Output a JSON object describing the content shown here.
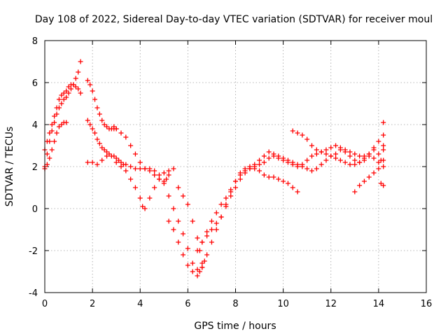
{
  "chart_data": {
    "type": "scatter",
    "title": "Day 108 of 2022, Sidereal Day-to-day VTEC variation (SDTVAR) for receiver moul",
    "xlabel": "GPS time / hours",
    "ylabel": "SDTVAR / TECUs",
    "xlim": [
      0,
      16
    ],
    "ylim": [
      -4,
      8
    ],
    "xticks": [
      "0",
      "2",
      "4",
      "6",
      "8",
      "10",
      "12",
      "14",
      "16"
    ],
    "yticks": [
      "-4",
      "-2",
      "0",
      "2",
      "4",
      "6",
      "8"
    ],
    "grid": true,
    "marker": "+",
    "marker_color": "#ff0000",
    "series": [
      {
        "name": "",
        "x": [
          0.0,
          0.1,
          0.2,
          0.3,
          0.4,
          0.5,
          0.6,
          0.7,
          0.8,
          0.9,
          1.0,
          1.1,
          1.2,
          1.3,
          1.4,
          1.5,
          0.0,
          0.1,
          0.2,
          0.3,
          0.4,
          0.5,
          0.6,
          0.7,
          0.8,
          0.9,
          1.0,
          1.1,
          1.2,
          1.3,
          1.4,
          1.5,
          0.0,
          0.1,
          0.2,
          0.3,
          0.4,
          0.5,
          0.6,
          0.7,
          0.8,
          0.9,
          1.8,
          1.9,
          2.0,
          2.1,
          2.2,
          2.3,
          2.4,
          2.5,
          2.6,
          2.7,
          2.8,
          2.9,
          3.0,
          1.8,
          1.9,
          2.0,
          2.1,
          2.2,
          2.3,
          2.4,
          2.5,
          2.6,
          2.7,
          2.8,
          2.9,
          3.0,
          3.1,
          3.2,
          3.3,
          1.8,
          2.0,
          2.2,
          2.4,
          2.6,
          2.9,
          3.0,
          3.2,
          3.4,
          3.6,
          3.8,
          4.0,
          4.2,
          4.4,
          3.0,
          3.2,
          3.4,
          3.6,
          3.8,
          4.0,
          4.1,
          4.2,
          4.4,
          4.6,
          4.8,
          5.0,
          5.2,
          5.4,
          3.4,
          3.6,
          3.8,
          4.0,
          4.2,
          4.4,
          4.6,
          4.8,
          5.0,
          5.1,
          5.2,
          4.6,
          4.8,
          5.0,
          5.2,
          5.4,
          5.6,
          5.8,
          6.0,
          6.2,
          6.4,
          6.6,
          5.2,
          5.4,
          5.6,
          5.8,
          6.0,
          6.2,
          6.4,
          6.5,
          6.6,
          6.7,
          5.6,
          5.8,
          6.0,
          6.2,
          6.4,
          6.5,
          6.6,
          6.8,
          7.0,
          7.2,
          7.4,
          7.6,
          7.8,
          8.0,
          8.2,
          8.4,
          8.6,
          8.8,
          9.0,
          9.2,
          9.4,
          9.6,
          9.8,
          10.0,
          10.2,
          10.4,
          10.6,
          6.4,
          6.6,
          6.8,
          7.0,
          7.2,
          7.4,
          7.6,
          7.8,
          8.0,
          8.2,
          8.4,
          8.6,
          8.8,
          9.0,
          9.2,
          9.4,
          9.6,
          9.8,
          10.0,
          10.2,
          10.4,
          10.6,
          10.8,
          11.0,
          11.2,
          11.4,
          11.6,
          11.8,
          12.0,
          12.2,
          12.4,
          12.6,
          12.8,
          13.0,
          13.2,
          13.4,
          13.6,
          13.8,
          14.0,
          14.2,
          6.6,
          6.8,
          7.0,
          7.2,
          7.4,
          7.6,
          7.8,
          8.0,
          8.2,
          8.4,
          8.6,
          8.8,
          9.0,
          9.2,
          9.4,
          9.6,
          9.8,
          10.0,
          10.2,
          10.4,
          10.6,
          10.8,
          11.0,
          11.2,
          11.4,
          11.6,
          11.8,
          12.0,
          12.2,
          12.4,
          12.6,
          12.8,
          13.0,
          13.2,
          13.4,
          13.6,
          13.8,
          14.0,
          14.2,
          10.4,
          10.6,
          10.8,
          11.0,
          11.2,
          11.4,
          11.6,
          11.8,
          12.0,
          12.2,
          12.4,
          12.6,
          12.8,
          13.0,
          13.2,
          13.4,
          13.6,
          13.8,
          14.0,
          14.2,
          13.0,
          13.2,
          13.4,
          13.6,
          13.8,
          14.0,
          14.1,
          14.2,
          14.2,
          14.2,
          14.1,
          14.2
        ],
        "y": [
          2.0,
          2.6,
          3.2,
          3.7,
          4.1,
          4.5,
          4.8,
          5.0,
          5.2,
          5.3,
          5.5,
          5.7,
          5.9,
          6.2,
          6.5,
          7.0,
          2.8,
          3.2,
          3.6,
          4.0,
          4.4,
          4.8,
          5.2,
          5.4,
          5.5,
          5.6,
          5.8,
          5.9,
          5.9,
          5.8,
          5.7,
          5.5,
          1.9,
          2.1,
          2.4,
          2.8,
          3.2,
          3.6,
          3.9,
          4.0,
          4.1,
          4.1,
          6.1,
          5.9,
          5.6,
          5.2,
          4.8,
          4.5,
          4.2,
          4.0,
          3.9,
          3.8,
          3.8,
          3.8,
          3.8,
          4.2,
          4.0,
          3.8,
          3.6,
          3.3,
          3.1,
          2.9,
          2.8,
          2.7,
          2.6,
          2.5,
          2.5,
          2.4,
          2.3,
          2.2,
          2.1,
          2.2,
          2.2,
          2.1,
          2.3,
          2.5,
          3.9,
          3.8,
          3.6,
          3.4,
          3.0,
          2.6,
          2.2,
          1.9,
          1.9,
          2.2,
          2.0,
          1.8,
          1.4,
          1.0,
          0.5,
          0.1,
          0.0,
          0.5,
          1.0,
          1.4,
          1.7,
          1.8,
          1.9,
          2.1,
          2.0,
          1.9,
          1.9,
          1.9,
          1.8,
          1.6,
          1.4,
          1.3,
          1.4,
          1.6,
          1.8,
          1.6,
          1.2,
          0.6,
          0.0,
          -0.6,
          -1.2,
          -1.9,
          -2.6,
          -2.9,
          -2.8,
          -0.6,
          -1.0,
          -1.6,
          -2.2,
          -2.7,
          -3.0,
          -3.2,
          -3.0,
          -2.8,
          -2.5,
          1.0,
          0.6,
          0.2,
          -0.6,
          -1.4,
          -2.0,
          -2.6,
          -2.2,
          -1.6,
          -1.0,
          -0.4,
          0.2,
          0.8,
          1.3,
          1.7,
          1.9,
          2.0,
          1.9,
          1.8,
          1.6,
          1.5,
          1.5,
          1.4,
          1.3,
          1.2,
          1.0,
          0.8,
          -2.0,
          -1.6,
          -1.1,
          -0.6,
          -0.2,
          0.2,
          0.5,
          0.9,
          1.3,
          1.6,
          1.8,
          1.9,
          2.0,
          2.1,
          2.2,
          2.4,
          2.5,
          2.4,
          2.3,
          2.2,
          2.1,
          2.0,
          2.1,
          2.3,
          2.5,
          2.6,
          2.7,
          2.6,
          2.5,
          2.4,
          2.3,
          2.2,
          2.1,
          2.1,
          2.2,
          2.4,
          2.5,
          2.4,
          2.2,
          2.0,
          -1.6,
          -1.3,
          -1.0,
          -0.7,
          -0.4,
          0.1,
          0.6,
          1.0,
          1.4,
          1.7,
          1.9,
          2.1,
          2.3,
          2.5,
          2.7,
          2.6,
          2.5,
          2.4,
          2.3,
          2.2,
          2.1,
          2.0,
          1.9,
          1.8,
          1.9,
          2.1,
          2.3,
          2.5,
          2.6,
          2.8,
          2.7,
          2.5,
          2.3,
          2.2,
          2.3,
          2.6,
          2.8,
          2.6,
          2.3,
          3.7,
          3.6,
          3.5,
          3.3,
          3.0,
          2.8,
          2.7,
          2.8,
          2.9,
          3.0,
          2.9,
          2.8,
          2.7,
          2.6,
          2.5,
          2.5,
          2.6,
          2.9,
          3.2,
          3.0,
          0.8,
          1.1,
          1.3,
          1.5,
          1.7,
          1.9,
          2.3,
          4.1,
          3.5,
          2.8,
          1.2,
          1.1
        ]
      }
    ]
  }
}
